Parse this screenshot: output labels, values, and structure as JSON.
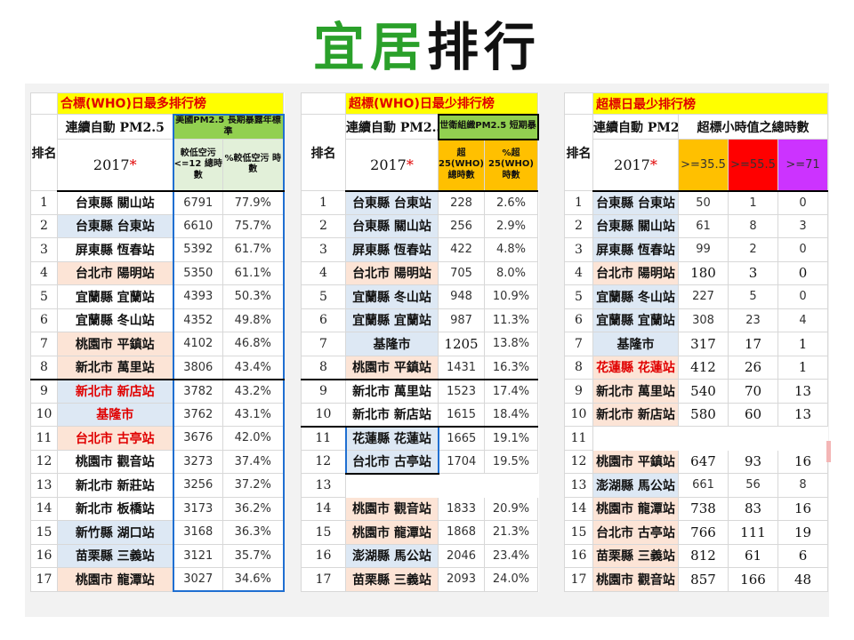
{
  "slide": {
    "title_green": "宜居",
    "title_black": "排行"
  },
  "table1": {
    "caption": "合標(WHO)日最多排行榜",
    "station_header": "連續自動 PM2.5",
    "year": "2017",
    "star": "*",
    "rank_header": "排名",
    "standard_header": "美國PM2.5 長期暴露年標準",
    "col1_header": "較低空污 <=12 總時數",
    "col2_header": "%較低空污 時數",
    "rows": [
      {
        "rank": "1",
        "station": "台東縣 關山站",
        "hours": "6791",
        "pct": "77.9%"
      },
      {
        "rank": "2",
        "station": "台東縣 台東站",
        "hours": "6610",
        "pct": "75.7%"
      },
      {
        "rank": "3",
        "station": "屏東縣 恆春站",
        "hours": "5392",
        "pct": "61.7%"
      },
      {
        "rank": "4",
        "station": "台北市 陽明站",
        "hours": "5350",
        "pct": "61.1%"
      },
      {
        "rank": "5",
        "station": "宜蘭縣 宜蘭站",
        "hours": "4393",
        "pct": "50.3%"
      },
      {
        "rank": "6",
        "station": "宜蘭縣 冬山站",
        "hours": "4352",
        "pct": "49.8%"
      },
      {
        "rank": "7",
        "station": "桃園市 平鎮站",
        "hours": "4102",
        "pct": "46.8%"
      },
      {
        "rank": "8",
        "station": "新北市 萬里站",
        "hours": "3806",
        "pct": "43.4%"
      },
      {
        "rank": "9",
        "station": "新北市 新店站",
        "hours": "3782",
        "pct": "43.2%"
      },
      {
        "rank": "10",
        "station": "基隆市",
        "hours": "3762",
        "pct": "43.1%"
      },
      {
        "rank": "11",
        "station": "台北市 古亭站",
        "hours": "3676",
        "pct": "42.0%"
      },
      {
        "rank": "12",
        "station": "桃園市 觀音站",
        "hours": "3273",
        "pct": "37.4%"
      },
      {
        "rank": "13",
        "station": "新北市 新莊站",
        "hours": "3256",
        "pct": "37.2%"
      },
      {
        "rank": "14",
        "station": "新北市 板橋站",
        "hours": "3173",
        "pct": "36.2%"
      },
      {
        "rank": "15",
        "station": "新竹縣 湖口站",
        "hours": "3168",
        "pct": "36.3%"
      },
      {
        "rank": "16",
        "station": "苗栗縣 三義站",
        "hours": "3121",
        "pct": "35.7%"
      },
      {
        "rank": "17",
        "station": "桃園市 龍潭站",
        "hours": "3027",
        "pct": "34.6%"
      }
    ]
  },
  "table2": {
    "caption": "超標(WHO)日最少排行榜",
    "station_header": "連續自動 PM2.5",
    "year": "2017",
    "star": "*",
    "rank_header": "排名",
    "standard_header": "世衛組織PM2.5 短期暴",
    "col1_header": "超25(WHO) 總時數",
    "col2_header": "%超 25(WHO) 時數",
    "rows": [
      {
        "rank": "1",
        "station": "台東縣 台東站",
        "hours": "228",
        "pct": "2.6%"
      },
      {
        "rank": "2",
        "station": "台東縣 關山站",
        "hours": "256",
        "pct": "2.9%"
      },
      {
        "rank": "3",
        "station": "屏東縣 恆春站",
        "hours": "422",
        "pct": "4.8%"
      },
      {
        "rank": "4",
        "station": "台北市 陽明站",
        "hours": "705",
        "pct": "8.0%"
      },
      {
        "rank": "5",
        "station": "宜蘭縣 冬山站",
        "hours": "948",
        "pct": "10.9%"
      },
      {
        "rank": "6",
        "station": "宜蘭縣 宜蘭站",
        "hours": "987",
        "pct": "11.3%"
      },
      {
        "rank": "7",
        "station": "基隆市",
        "hours": "1205",
        "pct": "13.8%"
      },
      {
        "rank": "8",
        "station": "桃園市 平鎮站",
        "hours": "1431",
        "pct": "16.3%"
      },
      {
        "rank": "9",
        "station": "新北市 萬里站",
        "hours": "1523",
        "pct": "17.4%"
      },
      {
        "rank": "10",
        "station": "新北市 新店站",
        "hours": "1615",
        "pct": "18.4%"
      },
      {
        "rank": "11",
        "station": "花蓮縣 花蓮站",
        "hours": "1665",
        "pct": "19.1%"
      },
      {
        "rank": "12",
        "station": "台北市 古亭站",
        "hours": "1704",
        "pct": "19.5%"
      },
      {
        "rank": "13",
        "station": "",
        "hours": "",
        "pct": ""
      },
      {
        "rank": "14",
        "station": "桃園市 觀音站",
        "hours": "1833",
        "pct": "20.9%"
      },
      {
        "rank": "15",
        "station": "桃園市 龍潭站",
        "hours": "1868",
        "pct": "21.3%"
      },
      {
        "rank": "16",
        "station": "澎湖縣 馬公站",
        "hours": "2046",
        "pct": "23.4%"
      },
      {
        "rank": "17",
        "station": "苗栗縣 三義站",
        "hours": "2093",
        "pct": "24.0%"
      }
    ]
  },
  "table3": {
    "caption": "超標日最少排行榜",
    "station_header": "連續自動 PM2.5",
    "year": "2017",
    "star": "*",
    "rank_header": "排名",
    "group_header": "超標小時值之總時數",
    "thresholds": [
      ">=35.5",
      ">=55.5",
      ">=71"
    ],
    "rows": [
      {
        "rank": "1",
        "station": "台東縣 台東站",
        "a": "50",
        "b": "1",
        "c": "0"
      },
      {
        "rank": "2",
        "station": "台東縣 關山站",
        "a": "61",
        "b": "8",
        "c": "3"
      },
      {
        "rank": "3",
        "station": "屏東縣 恆春站",
        "a": "99",
        "b": "2",
        "c": "0"
      },
      {
        "rank": "4",
        "station": "台北市 陽明站",
        "a": "180",
        "b": "3",
        "c": "0"
      },
      {
        "rank": "5",
        "station": "宜蘭縣 冬山站",
        "a": "227",
        "b": "5",
        "c": "0"
      },
      {
        "rank": "6",
        "station": "宜蘭縣 宜蘭站",
        "a": "308",
        "b": "23",
        "c": "4"
      },
      {
        "rank": "7",
        "station": "基隆市",
        "a": "317",
        "b": "17",
        "c": "1"
      },
      {
        "rank": "8",
        "station": "花蓮縣 花蓮站",
        "a": "412",
        "b": "26",
        "c": "1"
      },
      {
        "rank": "9",
        "station": "新北市 萬里站",
        "a": "540",
        "b": "70",
        "c": "13"
      },
      {
        "rank": "10",
        "station": "新北市 新店站",
        "a": "580",
        "b": "60",
        "c": "13"
      },
      {
        "rank": "11",
        "station": "",
        "a": "",
        "b": "",
        "c": ""
      },
      {
        "rank": "12",
        "station": "桃園市 平鎮站",
        "a": "647",
        "b": "93",
        "c": "16"
      },
      {
        "rank": "13",
        "station": "澎湖縣 馬公站",
        "a": "661",
        "b": "56",
        "c": "8"
      },
      {
        "rank": "14",
        "station": "桃園市 龍潭站",
        "a": "738",
        "b": "83",
        "c": "16"
      },
      {
        "rank": "15",
        "station": "台北市 古亭站",
        "a": "766",
        "b": "111",
        "c": "19"
      },
      {
        "rank": "16",
        "station": "苗栗縣 三義站",
        "a": "812",
        "b": "61",
        "c": "6"
      },
      {
        "rank": "17",
        "station": "桃園市 觀音站",
        "a": "857",
        "b": "166",
        "c": "48"
      }
    ]
  }
}
